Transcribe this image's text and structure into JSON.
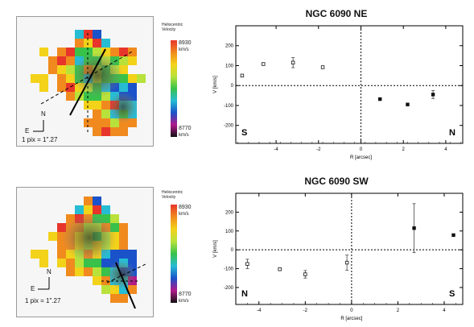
{
  "pixel_scale_label": "1 pix = 1\".27",
  "compass": {
    "north": "N",
    "east": "E"
  },
  "colorbar": {
    "title_lines": [
      "Heliocentric",
      "Velocity"
    ],
    "max_label": "8930",
    "min_label": "8770",
    "unit": "km/s",
    "colors": [
      "#e8352b",
      "#f08a1e",
      "#f3d21a",
      "#b8e23b",
      "#38c24a",
      "#26bcd4",
      "#1a52c9",
      "#b0188a",
      "#111111"
    ]
  },
  "chart_data": [
    {
      "type": "scatter",
      "title": "NGC 6090 NE",
      "xlabel": "R [arcsec]",
      "ylabel": "V [km/s]",
      "xlim": [
        -5.9,
        4.8
      ],
      "ylim": [
        -290,
        300
      ],
      "xticks": [
        -4,
        -2,
        0,
        2,
        4
      ],
      "yticks": [
        -200,
        -100,
        0,
        100,
        200
      ],
      "left_corner_label": "S",
      "right_corner_label": "N",
      "series": [
        {
          "marker": "open-square",
          "points": [
            {
              "x": -5.6,
              "y": 50,
              "err": 0
            },
            {
              "x": -4.6,
              "y": 108,
              "err": 0
            },
            {
              "x": -3.2,
              "y": 115,
              "err": 25
            },
            {
              "x": -1.8,
              "y": 92,
              "err": 0
            }
          ]
        },
        {
          "marker": "filled-square",
          "points": [
            {
              "x": 0.9,
              "y": -68,
              "err": 0
            },
            {
              "x": 2.2,
              "y": -95,
              "err": 0
            },
            {
              "x": 3.4,
              "y": -45,
              "err": 20
            }
          ]
        }
      ]
    },
    {
      "type": "scatter",
      "title": "NGC 6090 SW",
      "xlabel": "R [arcsec]",
      "ylabel": "V [km/s]",
      "xlim": [
        -5.0,
        4.8
      ],
      "ylim": [
        -290,
        300
      ],
      "xticks": [
        -4,
        -2,
        0,
        2,
        4
      ],
      "yticks": [
        -200,
        -100,
        0,
        100,
        200
      ],
      "left_corner_label": "N",
      "right_corner_label": "S",
      "series": [
        {
          "marker": "open-square",
          "points": [
            {
              "x": -4.5,
              "y": -75,
              "err": 25
            },
            {
              "x": -3.1,
              "y": -103,
              "err": 0
            },
            {
              "x": -2.0,
              "y": -130,
              "err": 20
            },
            {
              "x": -0.2,
              "y": -68,
              "err": 40
            }
          ]
        },
        {
          "marker": "filled-square",
          "points": [
            {
              "x": 2.7,
              "y": 115,
              "err": 130
            },
            {
              "x": 4.4,
              "y": 78,
              "err": 0
            }
          ]
        }
      ]
    }
  ]
}
